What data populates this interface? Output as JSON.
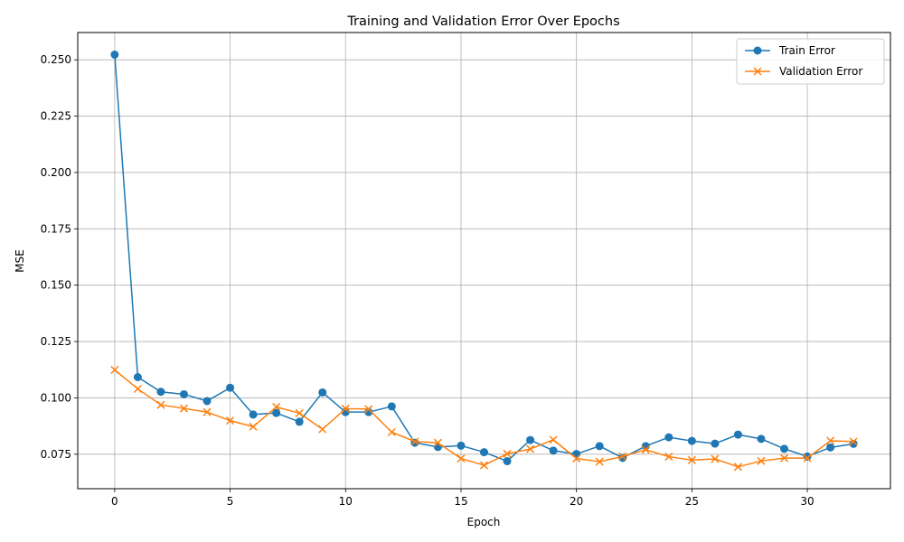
{
  "chart_data": {
    "type": "line",
    "title": "Training and Validation Error Over Epochs",
    "xlabel": "Epoch",
    "ylabel": "MSE",
    "xlim": [
      -1.6,
      33.6
    ],
    "ylim": [
      0.0597,
      0.2621
    ],
    "xticks": [
      0,
      5,
      10,
      15,
      20,
      25,
      30
    ],
    "yticks": [
      0.075,
      0.1,
      0.125,
      0.15,
      0.175,
      0.2,
      0.225,
      0.25
    ],
    "ytick_labels": [
      "0.075",
      "0.100",
      "0.125",
      "0.150",
      "0.175",
      "0.200",
      "0.225",
      "0.250"
    ],
    "grid": true,
    "legend": "top-right",
    "x": [
      0,
      1,
      2,
      3,
      4,
      5,
      6,
      7,
      8,
      9,
      10,
      11,
      12,
      13,
      14,
      15,
      16,
      17,
      18,
      19,
      20,
      21,
      22,
      23,
      24,
      25,
      26,
      27,
      28,
      29,
      30,
      31,
      32
    ],
    "series": [
      {
        "name": "Train Error",
        "marker": "circle",
        "color": "#1f77b4",
        "values": [
          0.2523,
          0.1092,
          0.1027,
          0.1016,
          0.0986,
          0.1045,
          0.0926,
          0.0933,
          0.0894,
          0.1024,
          0.0937,
          0.0937,
          0.0962,
          0.0801,
          0.0782,
          0.0788,
          0.0759,
          0.0719,
          0.0813,
          0.0766,
          0.0751,
          0.0786,
          0.0734,
          0.0786,
          0.0825,
          0.0809,
          0.0797,
          0.0837,
          0.0818,
          0.0774,
          0.074,
          0.078,
          0.0796
        ]
      },
      {
        "name": "Validation Error",
        "marker": "x",
        "color": "#ff7f0e",
        "values": [
          0.1124,
          0.104,
          0.0969,
          0.0953,
          0.0937,
          0.0899,
          0.0872,
          0.096,
          0.0932,
          0.0861,
          0.0952,
          0.095,
          0.0848,
          0.0806,
          0.0801,
          0.0731,
          0.0701,
          0.0752,
          0.0773,
          0.0814,
          0.0731,
          0.0717,
          0.074,
          0.077,
          0.0739,
          0.0724,
          0.0729,
          0.0694,
          0.072,
          0.0733,
          0.0733,
          0.081,
          0.0806
        ]
      }
    ]
  }
}
